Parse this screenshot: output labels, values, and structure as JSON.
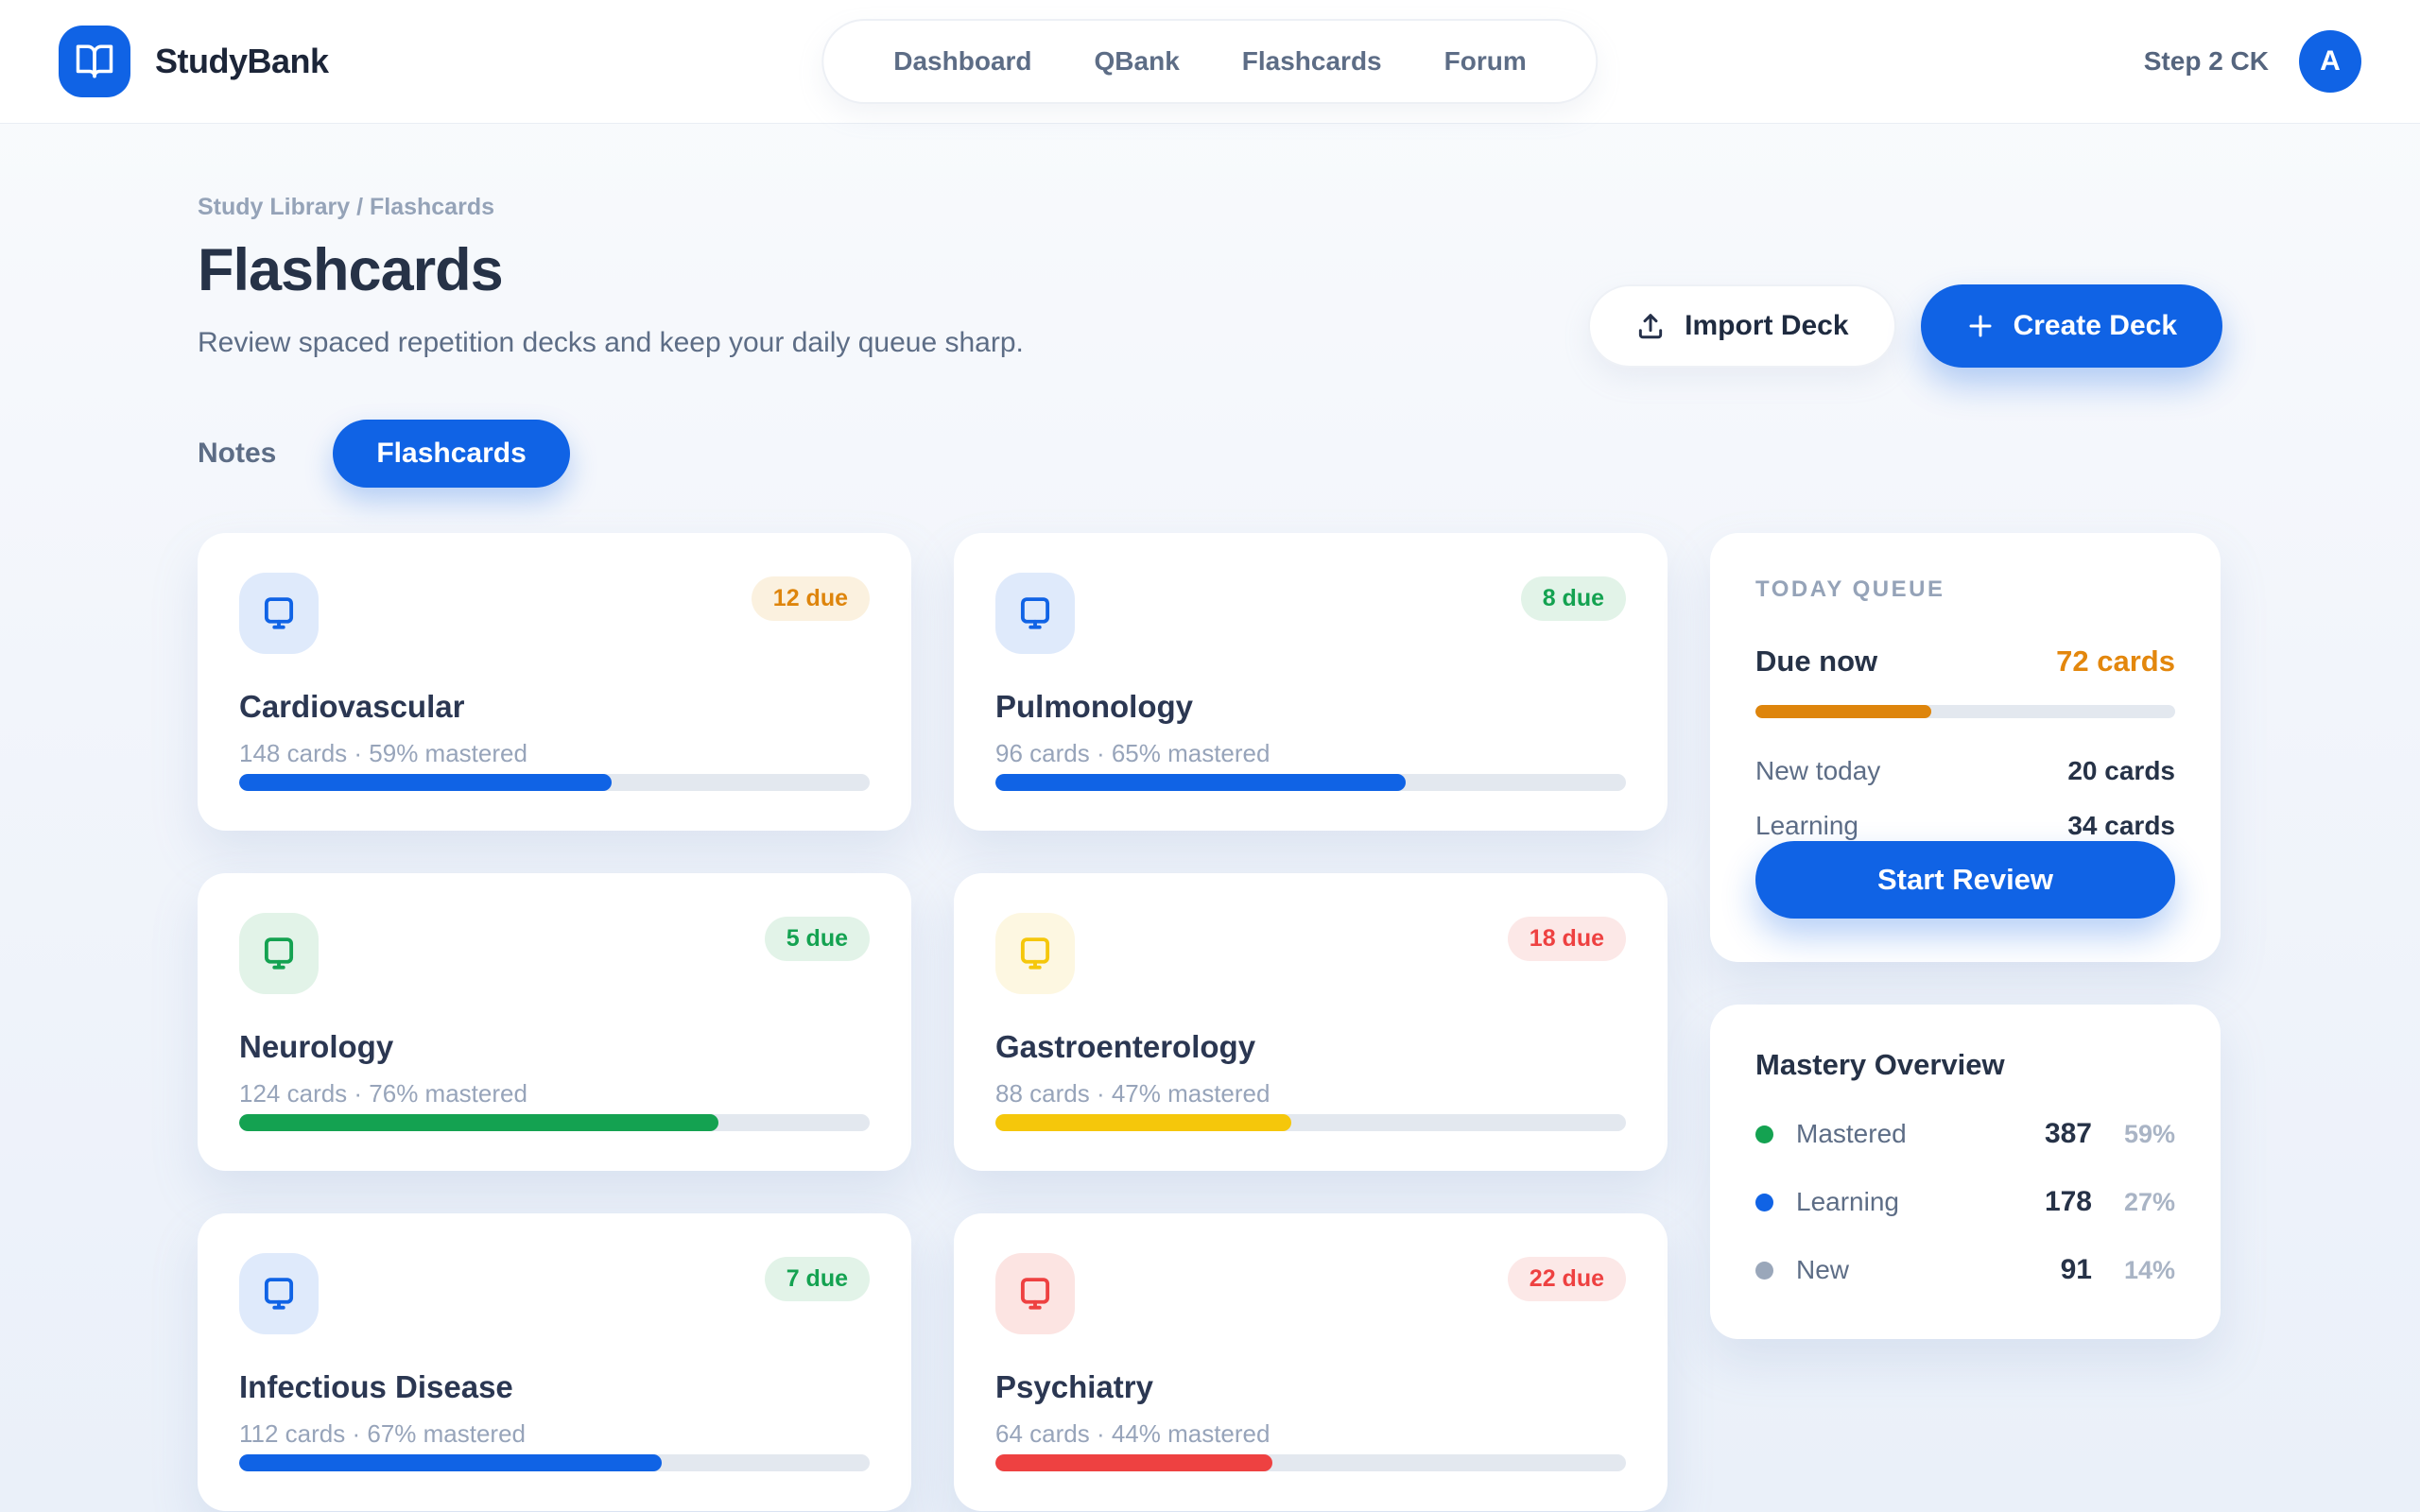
{
  "brand": {
    "name": "StudyBank"
  },
  "nav": {
    "items": [
      "Dashboard",
      "QBank",
      "Flashcards",
      "Forum"
    ]
  },
  "user": {
    "exam": "Step 2 CK",
    "avatar_initial": "A"
  },
  "breadcrumb": "Study Library / Flashcards",
  "page": {
    "title": "Flashcards",
    "subtitle": "Review spaced repetition decks and keep your daily queue sharp."
  },
  "actions": {
    "import_label": "Import Deck",
    "create_label": "Create Deck"
  },
  "icons": {
    "logo": "book-open-icon",
    "import": "upload-icon",
    "create": "plus-icon",
    "deck": "monitor-icon"
  },
  "tabs": [
    {
      "label": "Notes",
      "active": false
    },
    {
      "label": "Flashcards",
      "active": true
    }
  ],
  "decks": [
    {
      "name": "Cardiovascular",
      "due": "12 due",
      "meta": "148 cards · 59% mastered",
      "progress": 59,
      "accent": "blue",
      "badge": "orange"
    },
    {
      "name": "Pulmonology",
      "due": "8 due",
      "meta": "96 cards · 65% mastered",
      "progress": 65,
      "accent": "blue",
      "badge": "green"
    },
    {
      "name": "Neurology",
      "due": "5 due",
      "meta": "124 cards · 76% mastered",
      "progress": 76,
      "accent": "green",
      "badge": "green"
    },
    {
      "name": "Gastroenterology",
      "due": "18 due",
      "meta": "88 cards · 47% mastered",
      "progress": 47,
      "accent": "yellow",
      "badge": "red"
    },
    {
      "name": "Infectious Disease",
      "due": "7 due",
      "meta": "112 cards · 67% mastered",
      "progress": 67,
      "accent": "blue",
      "badge": "green"
    },
    {
      "name": "Psychiatry",
      "due": "22 due",
      "meta": "64 cards · 44% mastered",
      "progress": 44,
      "accent": "red",
      "badge": "red"
    }
  ],
  "today_queue": {
    "heading": "TODAY QUEUE",
    "due_now_label": "Due now",
    "due_now_value": "72 cards",
    "due_progress": 42,
    "rows": [
      {
        "label": "New today",
        "value": "20 cards"
      },
      {
        "label": "Learning",
        "value": "34 cards"
      }
    ],
    "cta": "Start Review"
  },
  "mastery": {
    "title": "Mastery Overview",
    "rows": [
      {
        "label": "Mastered",
        "value": "387",
        "pct": "59%",
        "tone": "green"
      },
      {
        "label": "Learning",
        "value": "178",
        "pct": "27%",
        "tone": "blue"
      },
      {
        "label": "New",
        "value": "91",
        "pct": "14%",
        "tone": "gray"
      }
    ]
  },
  "colors": {
    "primary": "#1063e5",
    "blue-bg": "#dfeafb",
    "green": "#14a251",
    "green-bg": "#e2f3e8",
    "yellow": "#f5c70b",
    "yellow-bg": "#fdf7e1",
    "red": "#ee4141",
    "red-bg": "#fce8e7",
    "red-icon-bg": "#fce4e2",
    "orange": "#de850c",
    "orange-bg": "#fbf1df",
    "gray-dot": "#9aa7ba",
    "track": "#e3e8ef"
  }
}
